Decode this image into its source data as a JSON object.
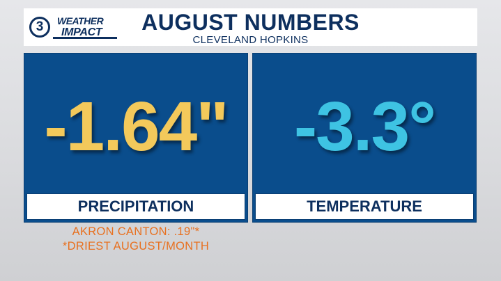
{
  "header": {
    "logo": {
      "number": "3",
      "weather": "WEATHER",
      "impact": "IMPACT"
    },
    "title": "AUGUST NUMBERS",
    "subtitle": "CLEVELAND HOPKINS"
  },
  "panels": [
    {
      "value": "-1.64\"",
      "label": "PRECIPITATION",
      "color": "#f3c95b"
    },
    {
      "value": "-3.3°",
      "label": "TEMPERATURE",
      "color": "#3ec3e3"
    }
  ],
  "notes": [
    "AKRON CANTON: .19\"*",
    "*DRIEST AUGUST/MONTH"
  ],
  "colors": {
    "panel_background": "#0a4d8c",
    "navy_text": "#0d2f5e",
    "note_orange": "#e8701f"
  }
}
